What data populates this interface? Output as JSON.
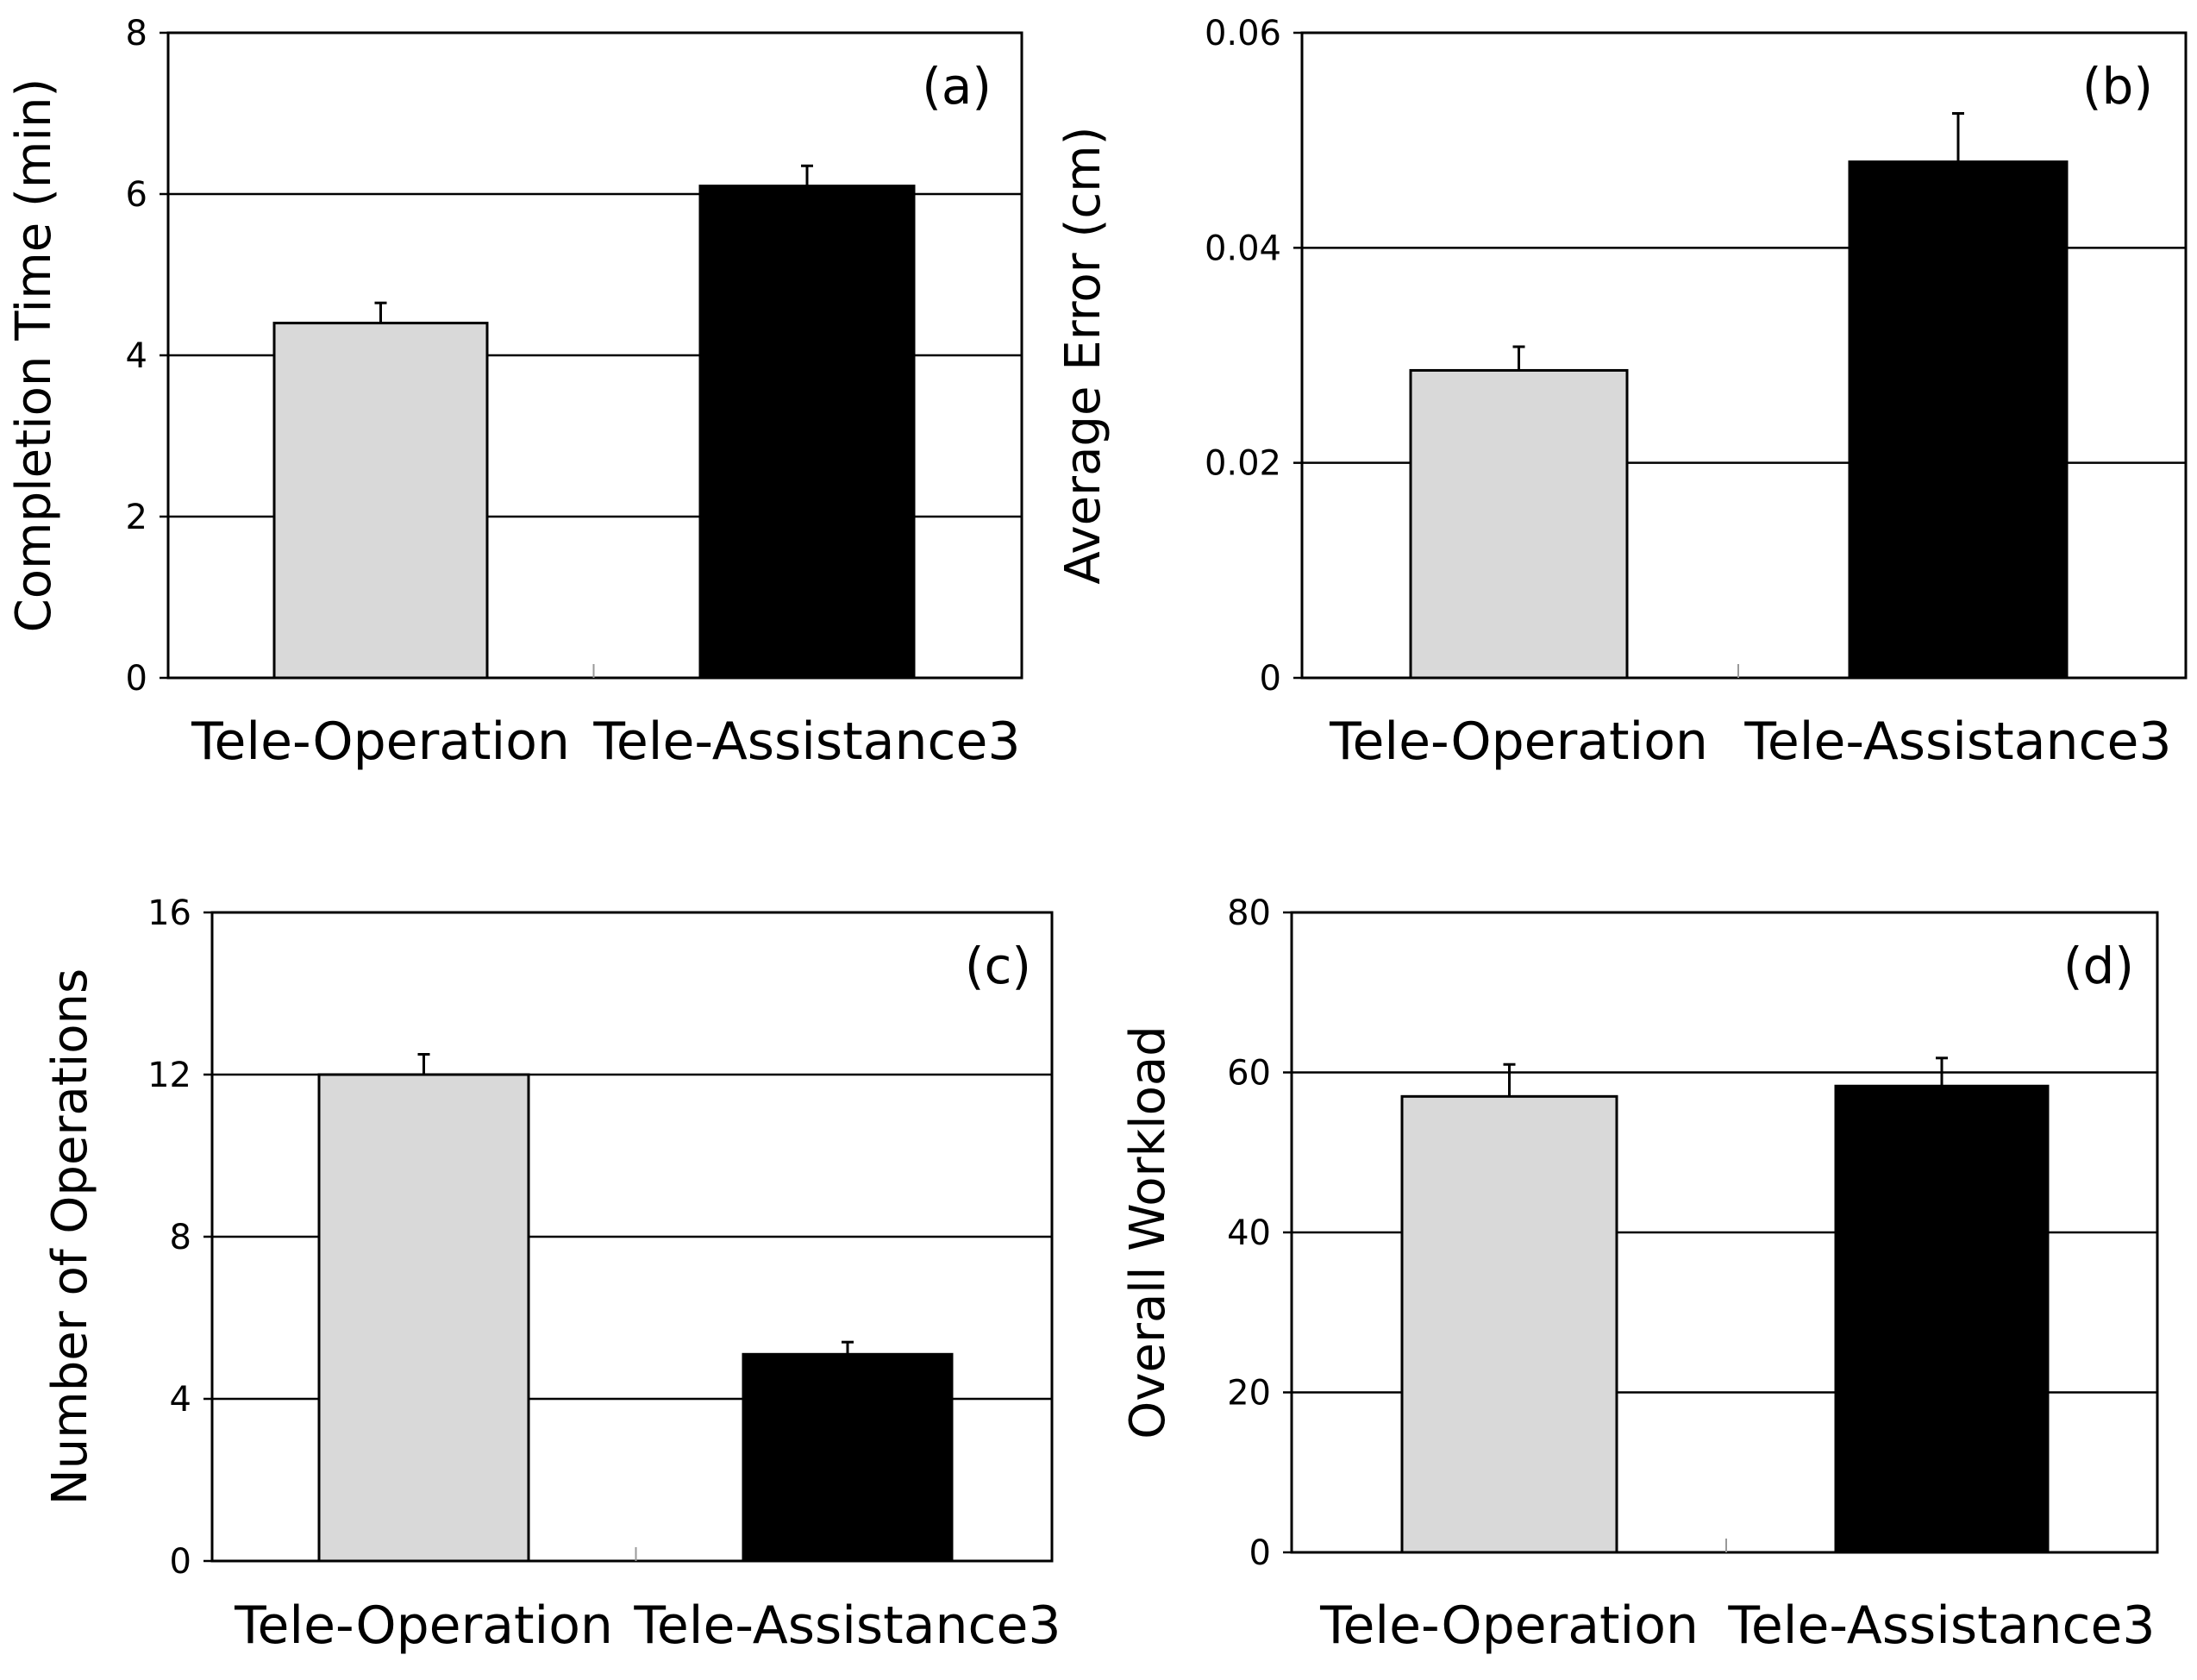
{
  "colors": {
    "tele_operation": "#d9d9d9",
    "tele_assistance3": "#000000",
    "axis": "#000000",
    "grid": "#000000"
  },
  "chart_data": [
    {
      "type": "bar",
      "panel": "(a)",
      "categories": [
        "Tele-Operation",
        "Tele-Assistance3"
      ],
      "values": [
        4.4,
        6.1
      ],
      "errors": [
        0.25,
        0.25
      ],
      "ylabel": "Completion Time (min)",
      "ylim": [
        0,
        8
      ],
      "yticks": [
        "0",
        "2",
        "4",
        "6",
        "8"
      ],
      "grid": true
    },
    {
      "type": "bar",
      "panel": "(b)",
      "categories": [
        "Tele-Operation",
        "Tele-Assistance3"
      ],
      "values": [
        0.0286,
        0.048
      ],
      "errors": [
        0.0022,
        0.0045
      ],
      "ylabel": "Average Error (cm)",
      "ylim": [
        0,
        0.06
      ],
      "yticks": [
        "0",
        "0.02",
        "0.04",
        "0.06"
      ],
      "grid": true
    },
    {
      "type": "bar",
      "panel": "(c)",
      "categories": [
        "Tele-Operation",
        "Tele-Assistance3"
      ],
      "values": [
        12.0,
        5.1
      ],
      "errors": [
        0.5,
        0.3
      ],
      "ylabel": "Number of Operations",
      "ylim": [
        0,
        16
      ],
      "yticks": [
        "0",
        "4",
        "8",
        "12",
        "16"
      ],
      "grid": true
    },
    {
      "type": "bar",
      "panel": "(d)",
      "categories": [
        "Tele-Operation",
        "Tele-Assistance3"
      ],
      "values": [
        57.0,
        58.3
      ],
      "errors": [
        4.0,
        3.5
      ],
      "ylabel": "Overall Workload",
      "ylim": [
        0,
        80
      ],
      "yticks": [
        "0",
        "20",
        "40",
        "60",
        "80"
      ],
      "grid": true
    }
  ]
}
